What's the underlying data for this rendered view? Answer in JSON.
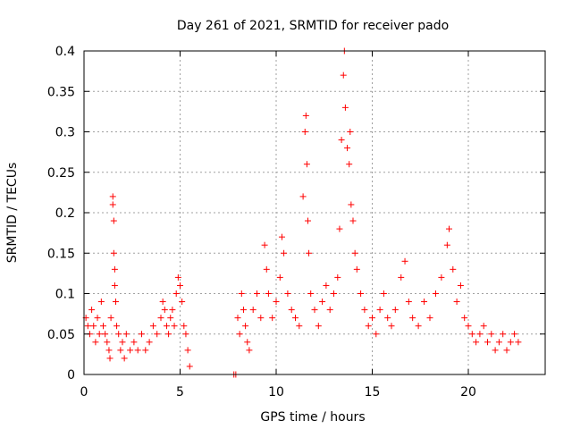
{
  "chart_data": {
    "type": "scatter",
    "title": "Day 261 of 2021, SRMTID for receiver pado",
    "xlabel": "GPS time / hours",
    "ylabel": "SRMTID / TECUs",
    "xlim": [
      0,
      24
    ],
    "ylim": [
      0,
      0.4
    ],
    "xticks": [
      0,
      5,
      10,
      15,
      20
    ],
    "xtick_labels": [
      "0",
      "5",
      "10",
      "15",
      "20"
    ],
    "yticks": [
      0,
      0.05,
      0.1,
      0.15,
      0.2,
      0.25,
      0.3,
      0.35,
      0.4
    ],
    "ytick_labels": [
      "0",
      "0.05",
      "0.1",
      "0.15",
      "0.2",
      "0.25",
      "0.3",
      "0.35",
      "0.4"
    ],
    "grid": true,
    "marker": "+",
    "color": "#ff0000",
    "series": [
      {
        "name": "SRMTID",
        "points": [
          [
            0.1,
            0.07
          ],
          [
            0.2,
            0.06
          ],
          [
            0.3,
            0.05
          ],
          [
            0.4,
            0.08
          ],
          [
            0.5,
            0.06
          ],
          [
            0.6,
            0.04
          ],
          [
            0.7,
            0.07
          ],
          [
            0.8,
            0.05
          ],
          [
            0.9,
            0.09
          ],
          [
            1.0,
            0.06
          ],
          [
            1.1,
            0.05
          ],
          [
            1.2,
            0.04
          ],
          [
            1.3,
            0.03
          ],
          [
            1.35,
            0.02
          ],
          [
            1.4,
            0.07
          ],
          [
            1.5,
            0.22
          ],
          [
            1.5,
            0.21
          ],
          [
            1.55,
            0.19
          ],
          [
            1.55,
            0.15
          ],
          [
            1.6,
            0.13
          ],
          [
            1.6,
            0.11
          ],
          [
            1.65,
            0.09
          ],
          [
            1.7,
            0.06
          ],
          [
            1.8,
            0.05
          ],
          [
            1.9,
            0.03
          ],
          [
            2.0,
            0.04
          ],
          [
            2.1,
            0.02
          ],
          [
            2.2,
            0.05
          ],
          [
            2.4,
            0.03
          ],
          [
            2.6,
            0.04
          ],
          [
            2.8,
            0.03
          ],
          [
            3.0,
            0.05
          ],
          [
            3.2,
            0.03
          ],
          [
            3.4,
            0.04
          ],
          [
            3.6,
            0.06
          ],
          [
            3.8,
            0.05
          ],
          [
            4.0,
            0.07
          ],
          [
            4.1,
            0.09
          ],
          [
            4.2,
            0.08
          ],
          [
            4.3,
            0.06
          ],
          [
            4.4,
            0.05
          ],
          [
            4.5,
            0.07
          ],
          [
            4.6,
            0.08
          ],
          [
            4.7,
            0.06
          ],
          [
            4.8,
            0.1
          ],
          [
            4.9,
            0.12
          ],
          [
            5.0,
            0.11
          ],
          [
            5.1,
            0.09
          ],
          [
            5.2,
            0.06
          ],
          [
            5.3,
            0.05
          ],
          [
            5.4,
            0.03
          ],
          [
            5.5,
            0.01
          ],
          [
            7.8,
            0.0
          ],
          [
            7.9,
            0.0
          ],
          [
            8.0,
            0.07
          ],
          [
            8.1,
            0.05
          ],
          [
            8.2,
            0.1
          ],
          [
            8.3,
            0.08
          ],
          [
            8.4,
            0.06
          ],
          [
            8.5,
            0.04
          ],
          [
            8.6,
            0.03
          ],
          [
            8.8,
            0.08
          ],
          [
            9.0,
            0.1
          ],
          [
            9.2,
            0.07
          ],
          [
            9.4,
            0.16
          ],
          [
            9.5,
            0.13
          ],
          [
            9.6,
            0.1
          ],
          [
            9.8,
            0.07
          ],
          [
            10.0,
            0.09
          ],
          [
            10.2,
            0.12
          ],
          [
            10.3,
            0.17
          ],
          [
            10.4,
            0.15
          ],
          [
            10.6,
            0.1
          ],
          [
            10.8,
            0.08
          ],
          [
            11.0,
            0.07
          ],
          [
            11.2,
            0.06
          ],
          [
            11.4,
            0.22
          ],
          [
            11.5,
            0.3
          ],
          [
            11.55,
            0.32
          ],
          [
            11.6,
            0.26
          ],
          [
            11.65,
            0.19
          ],
          [
            11.7,
            0.15
          ],
          [
            11.8,
            0.1
          ],
          [
            12.0,
            0.08
          ],
          [
            12.2,
            0.06
          ],
          [
            12.4,
            0.09
          ],
          [
            12.6,
            0.11
          ],
          [
            12.8,
            0.08
          ],
          [
            13.0,
            0.1
          ],
          [
            13.2,
            0.12
          ],
          [
            13.3,
            0.18
          ],
          [
            13.4,
            0.29
          ],
          [
            13.5,
            0.37
          ],
          [
            13.55,
            0.4
          ],
          [
            13.6,
            0.33
          ],
          [
            13.7,
            0.28
          ],
          [
            13.8,
            0.26
          ],
          [
            13.85,
            0.3
          ],
          [
            13.9,
            0.21
          ],
          [
            14.0,
            0.19
          ],
          [
            14.1,
            0.15
          ],
          [
            14.2,
            0.13
          ],
          [
            14.4,
            0.1
          ],
          [
            14.6,
            0.08
          ],
          [
            14.8,
            0.06
          ],
          [
            15.0,
            0.07
          ],
          [
            15.2,
            0.05
          ],
          [
            15.4,
            0.08
          ],
          [
            15.6,
            0.1
          ],
          [
            15.8,
            0.07
          ],
          [
            16.0,
            0.06
          ],
          [
            16.2,
            0.08
          ],
          [
            16.5,
            0.12
          ],
          [
            16.7,
            0.14
          ],
          [
            16.9,
            0.09
          ],
          [
            17.1,
            0.07
          ],
          [
            17.4,
            0.06
          ],
          [
            17.7,
            0.09
          ],
          [
            18.0,
            0.07
          ],
          [
            18.3,
            0.1
          ],
          [
            18.6,
            0.12
          ],
          [
            18.9,
            0.16
          ],
          [
            19.0,
            0.18
          ],
          [
            19.2,
            0.13
          ],
          [
            19.4,
            0.09
          ],
          [
            19.6,
            0.11
          ],
          [
            19.8,
            0.07
          ],
          [
            20.0,
            0.06
          ],
          [
            20.2,
            0.05
          ],
          [
            20.4,
            0.04
          ],
          [
            20.6,
            0.05
          ],
          [
            20.8,
            0.06
          ],
          [
            21.0,
            0.04
          ],
          [
            21.2,
            0.05
          ],
          [
            21.4,
            0.03
          ],
          [
            21.6,
            0.04
          ],
          [
            21.8,
            0.05
          ],
          [
            22.0,
            0.03
          ],
          [
            22.2,
            0.04
          ],
          [
            22.4,
            0.05
          ],
          [
            22.6,
            0.04
          ]
        ]
      }
    ]
  }
}
